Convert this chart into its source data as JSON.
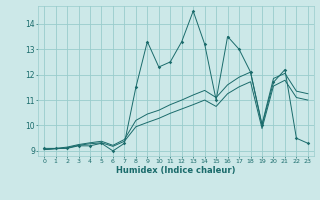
{
  "xlabel": "Humidex (Indice chaleur)",
  "xlim": [
    -0.5,
    23.5
  ],
  "ylim": [
    8.8,
    14.7
  ],
  "yticks": [
    9,
    10,
    11,
    12,
    13,
    14
  ],
  "xticks": [
    0,
    1,
    2,
    3,
    4,
    5,
    6,
    7,
    8,
    9,
    10,
    11,
    12,
    13,
    14,
    15,
    16,
    17,
    18,
    19,
    20,
    21,
    22,
    23
  ],
  "bg_color": "#cce8e8",
  "grid_color": "#99cccc",
  "line_color": "#1a6b6b",
  "series1_x": [
    0,
    1,
    2,
    3,
    4,
    5,
    6,
    7,
    8,
    9,
    10,
    11,
    12,
    13,
    14,
    15,
    16,
    17,
    18,
    19,
    20,
    21,
    22,
    23
  ],
  "series1_y": [
    9.1,
    9.1,
    9.1,
    9.2,
    9.2,
    9.3,
    9.0,
    9.3,
    11.5,
    13.3,
    12.3,
    12.5,
    13.3,
    14.5,
    13.2,
    11.0,
    13.5,
    13.0,
    12.1,
    10.0,
    11.7,
    12.2,
    9.5,
    9.3
  ],
  "series2_x": [
    0,
    1,
    2,
    3,
    4,
    5,
    6,
    7,
    8,
    9,
    10,
    11,
    12,
    13,
    14,
    15,
    16,
    17,
    18,
    19,
    20,
    21,
    22,
    23
  ],
  "series2_y": [
    9.05,
    9.1,
    9.15,
    9.25,
    9.32,
    9.38,
    9.22,
    9.45,
    10.2,
    10.45,
    10.6,
    10.82,
    11.0,
    11.2,
    11.38,
    11.1,
    11.6,
    11.9,
    12.1,
    10.05,
    11.85,
    12.05,
    11.35,
    11.25
  ],
  "series3_x": [
    0,
    1,
    2,
    3,
    4,
    5,
    6,
    7,
    8,
    9,
    10,
    11,
    12,
    13,
    14,
    15,
    16,
    17,
    18,
    19,
    20,
    21,
    22,
    23
  ],
  "series3_y": [
    9.05,
    9.08,
    9.12,
    9.22,
    9.28,
    9.32,
    9.18,
    9.38,
    9.95,
    10.12,
    10.28,
    10.48,
    10.65,
    10.82,
    11.0,
    10.75,
    11.25,
    11.52,
    11.72,
    9.88,
    11.55,
    11.78,
    11.1,
    11.0
  ]
}
